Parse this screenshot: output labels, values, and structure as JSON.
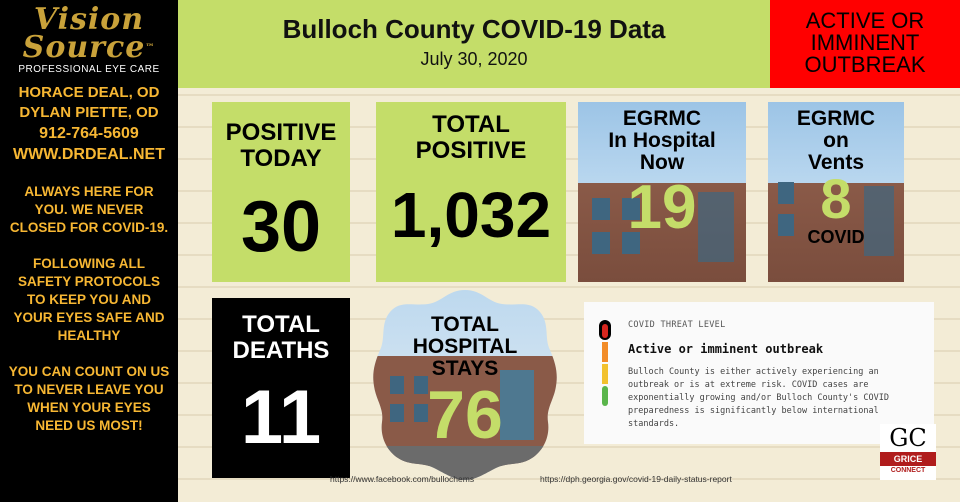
{
  "sidebar": {
    "logo_top": "Vision",
    "logo_bottom": "Source",
    "logo_tm": "™",
    "logo_sub": "PROFESSIONAL EYE CARE",
    "doctor_1": "HORACE DEAL, OD",
    "doctor_2": "DYLAN PIETTE, OD",
    "phone": "912-764-5609",
    "website": "WWW.DRDEAL.NET",
    "para_1": "ALWAYS HERE FOR YOU.  WE NEVER CLOSED FOR COVID-19.",
    "para_2": "FOLLOWING ALL SAFETY PROTOCOLS TO KEEP YOU AND YOUR EYES SAFE AND HEALTHY",
    "para_3": "YOU CAN COUNT ON US TO NEVER LEAVE YOU WHEN YOUR EYES NEED US MOST!"
  },
  "header": {
    "title": "Bulloch County COVID-19 Data",
    "date": "July 30, 2020"
  },
  "outbreak_box": {
    "line_1": "ACTIVE OR",
    "line_2": "IMMINENT",
    "line_3": "OUTBREAK"
  },
  "stats": {
    "positive_today": {
      "label_1": "POSITIVE",
      "label_2": "TODAY",
      "value": "30"
    },
    "total_positive": {
      "label_1": "TOTAL",
      "label_2": "POSITIVE",
      "value": "1,032"
    },
    "hospital_now": {
      "label_1": "EGRMC",
      "label_2": "In Hospital",
      "label_3": "Now",
      "value": "19"
    },
    "vents": {
      "label_1": "EGRMC",
      "label_2": "on",
      "label_3": "Vents",
      "value": "8",
      "sublabel": "COVID"
    },
    "total_deaths": {
      "label_1": "TOTAL",
      "label_2": "DEATHS",
      "value": "11"
    },
    "hospital_stays": {
      "label_1": "TOTAL",
      "label_2": "HOSPITAL",
      "label_3": "STAYS",
      "value": "76"
    }
  },
  "threat": {
    "title": "COVID THREAT LEVEL",
    "heading": "Active or imminent outbreak",
    "description": "Bulloch County is either actively experiencing an outbreak or is at extreme risk. COVID cases are exponentially growing and/or Bulloch County's COVID preparedness is significantly below international standards.",
    "colors": {
      "red": "#d7261e",
      "orange": "#f28c28",
      "yellow": "#f2c12e",
      "green": "#5ab54b"
    }
  },
  "gc_logo": {
    "letters": "GC",
    "band_1": "GRICE",
    "band_2": "CONNECT"
  },
  "sources": {
    "facebook": "https://www.facebook.com/bullochems",
    "dph": "https://dph.georgia.gov/covid-19-daily-status-report"
  },
  "colors": {
    "accent_green": "#c4dd69",
    "outbreak_red": "#ff0000",
    "sidebar_gold": "#f7b733"
  }
}
